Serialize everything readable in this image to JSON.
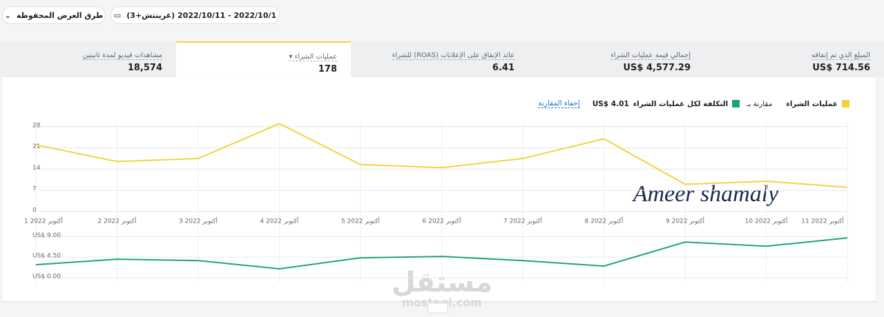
{
  "header": {
    "saved_views": "طرق العرض المحفوظة",
    "date_range": "2022/10/1 - 2022/10/11 (غرينتش+3)"
  },
  "metrics": [
    {
      "label": "المبلغ الذي تم إنفاقه",
      "value": "US$ 714.56"
    },
    {
      "label": "إجمالي قيمة عمليات الشراء",
      "value": "US$ 4,577.29"
    },
    {
      "label": "عائد الإنفاق على الإعلانات (ROAS) للشراء",
      "value": "6.41"
    },
    {
      "label": "عمليات الشراء",
      "value": "178"
    },
    {
      "label": "مشاهدات فيديو لمدة ثانيتين",
      "value": "18,574"
    }
  ],
  "legend": {
    "compare_label": "مقارنة بـ",
    "compare_value": "US$ 4.01",
    "hide_link": "إخفاء المقارنة"
  },
  "watermark": {
    "signature": "Ameer shamaly",
    "brand": "مستقل",
    "site": "mostaql.com"
  },
  "chart_data": [
    {
      "type": "line",
      "categories": [
        "1 أكتوبر 2022",
        "2 أكتوبر 2022",
        "3 أكتوبر 2022",
        "4 أكتوبر 2022",
        "5 أكتوبر 2022",
        "6 أكتوبر 2022",
        "7 أكتوبر 2022",
        "8 أكتوبر 2022",
        "9 أكتوبر 2022",
        "10 أكتوبر 2022",
        "11 أكتوبر 2022"
      ],
      "series": [
        {
          "name": "عمليات الشراء",
          "color": "#f2d43a",
          "values": [
            22,
            16.5,
            17.5,
            29,
            15.5,
            14.5,
            17.5,
            24,
            9,
            10,
            8
          ]
        }
      ],
      "ylim": [
        0,
        30
      ],
      "yticks": [
        0,
        7,
        14,
        21,
        28
      ],
      "grid": true
    },
    {
      "type": "line",
      "series": [
        {
          "name": "التكلفة لكل عمليات الشراء",
          "color": "#1aa37f",
          "values": [
            2.85,
            4.05,
            3.75,
            1.95,
            4.35,
            4.65,
            3.75,
            2.55,
            7.8,
            6.9,
            8.7
          ]
        }
      ],
      "ylim": [
        0,
        9.5
      ],
      "yticks": [
        {
          "value": 0,
          "label": "US$ 0.00"
        },
        {
          "value": 4.5,
          "label": "US$ 4.50"
        },
        {
          "value": 9,
          "label": "US$ 9.00"
        }
      ],
      "grid": true
    }
  ]
}
